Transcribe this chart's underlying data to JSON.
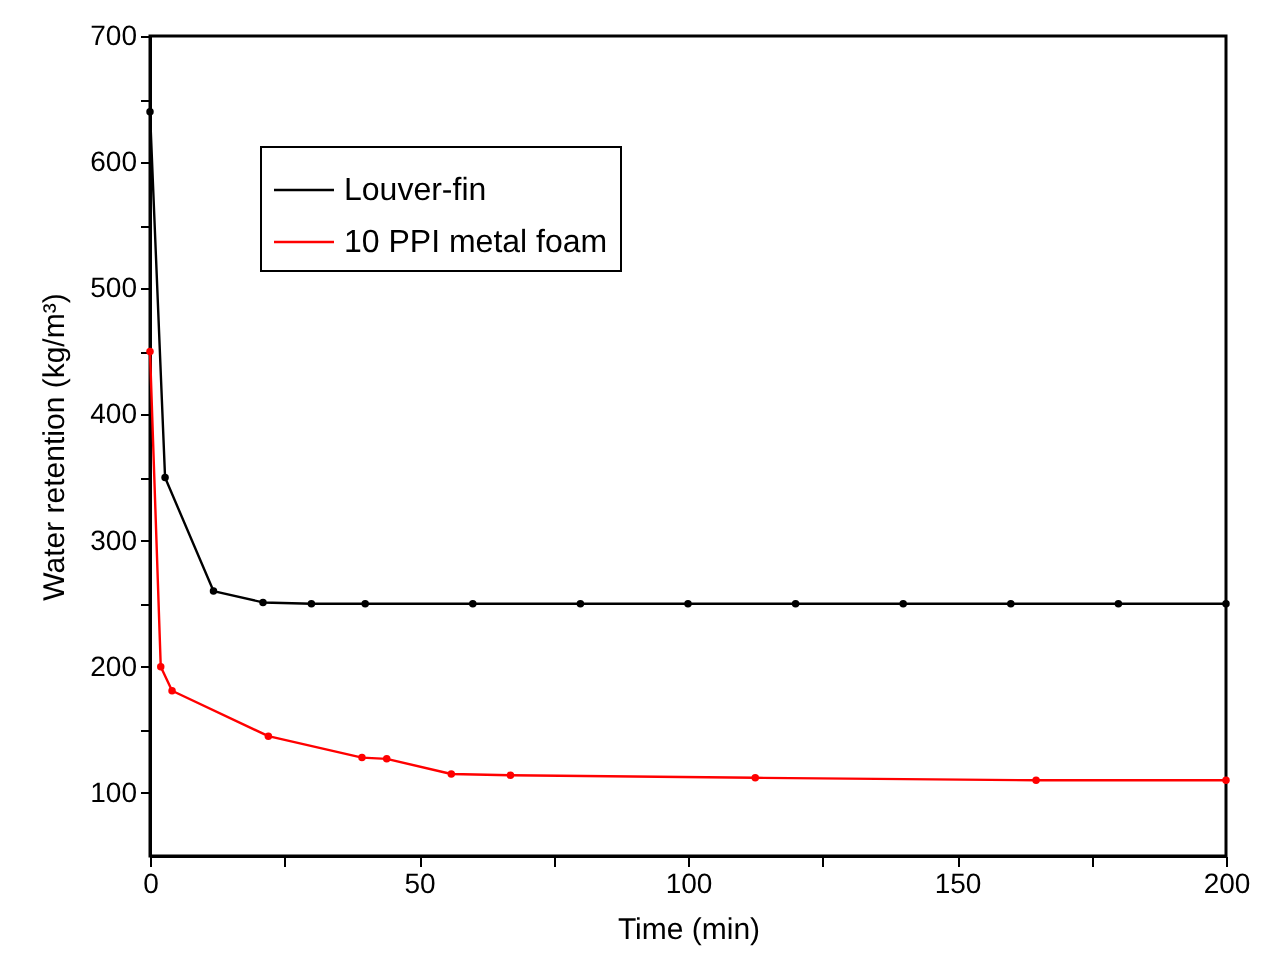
{
  "chart_data": {
    "type": "line",
    "xlabel": "Time (min)",
    "ylabel": "Water retention (kg/m³)",
    "xlim": [
      0,
      200
    ],
    "xticks": [
      0,
      {
        "value": 25,
        "label": null
      },
      50,
      {
        "value": 75,
        "label": null
      },
      100,
      {
        "value": 125,
        "label": null
      },
      150,
      {
        "value": 175,
        "label": null
      },
      200
    ],
    "ylim": [
      50,
      700
    ],
    "yticks": [
      100,
      {
        "value": 150,
        "label": null
      },
      200,
      {
        "value": 250,
        "label": null
      },
      300,
      {
        "value": 350,
        "label": null
      },
      400,
      {
        "value": 450,
        "label": null
      },
      500,
      {
        "value": 550,
        "label": null
      },
      600,
      {
        "value": 650,
        "label": null
      },
      700
    ],
    "grid": false,
    "legend": "top left",
    "marker": "circle",
    "line_style": "solid",
    "series": [
      {
        "name": "Louver-fin",
        "color": "#000000",
        "x": [
          0,
          2.8,
          11.8,
          21,
          30,
          40,
          60,
          80,
          100,
          120,
          140,
          160,
          180,
          200
        ],
        "values": [
          640,
          350,
          260,
          251,
          250,
          250,
          250,
          250,
          250,
          250,
          250,
          250,
          250,
          250
        ]
      },
      {
        "name": "10 PPI metal foam",
        "color": "#ff0000",
        "x": [
          0,
          2,
          4.1,
          22,
          39.4,
          44,
          56,
          67,
          112.5,
          164.7,
          200
        ],
        "values": [
          450,
          200,
          181,
          145,
          128,
          127,
          115,
          114,
          112,
          110,
          110
        ]
      }
    ]
  }
}
